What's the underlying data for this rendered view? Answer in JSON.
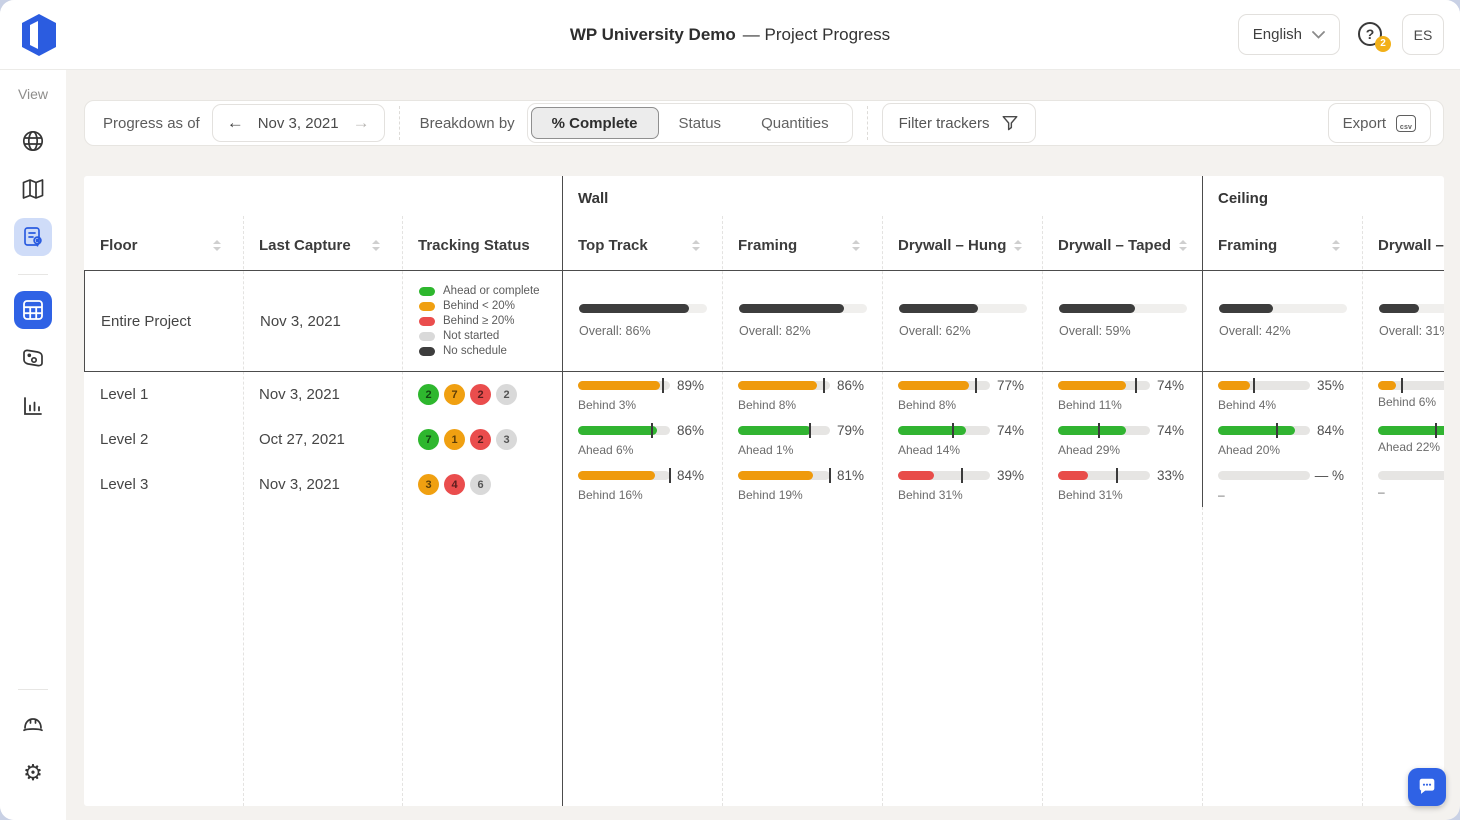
{
  "header": {
    "title_bold": "WP University Demo",
    "title_rest": "— Project Progress",
    "language": "English",
    "help_badge": "2",
    "avatar": "ES"
  },
  "sidebar": {
    "view_label": "View",
    "icons": [
      "globe-icon",
      "map-icon",
      "report-pin-icon",
      "grid-table-icon",
      "photo-map-icon",
      "bar-chart-icon",
      "hardhat-icon",
      "gear-icon"
    ]
  },
  "toolbar": {
    "progress_label": "Progress as of",
    "date": "Nov 3, 2021",
    "breakdown_label": "Breakdown by",
    "tabs": [
      {
        "label": "% Complete",
        "active": true
      },
      {
        "label": "Status",
        "active": false
      },
      {
        "label": "Quantities",
        "active": false
      }
    ],
    "filter_label": "Filter trackers",
    "export_label": "Export",
    "csv_label": "csv"
  },
  "colors": {
    "accent": "#2b5ce0",
    "ahead": "#31b431",
    "behind": "#ef9a0c",
    "severe": "#e84c49",
    "empty": "transparent",
    "overall": "#3d3d3d",
    "badges": {
      "green": "#2eb72e",
      "orange": "#f0a011",
      "red": "#ea4d4d",
      "gray": "#d9d9d9"
    }
  },
  "table": {
    "groups": [
      "Wall",
      "Ceiling"
    ],
    "columns": [
      {
        "label": "Floor",
        "sortable": true
      },
      {
        "label": "Last Capture",
        "sortable": true
      },
      {
        "label": "Tracking Status",
        "sortable": false
      },
      {
        "label": "Top Track",
        "sortable": true
      },
      {
        "label": "Framing",
        "sortable": true
      },
      {
        "label": "Drywall – Hung",
        "sortable": true
      },
      {
        "label": "Drywall – Taped",
        "sortable": true
      },
      {
        "label": "Framing",
        "sortable": true
      },
      {
        "label": "Drywall – Hung",
        "sortable": true
      }
    ],
    "summary_row": {
      "floor": "Entire Project",
      "last_capture": "Nov 3, 2021",
      "legend": [
        {
          "color": "#2eb72e",
          "label": "Ahead or complete"
        },
        {
          "color": "#f0a011",
          "label": "Behind < 20%"
        },
        {
          "color": "#ea4d4d",
          "label": "Behind ≥ 20%"
        },
        {
          "color": "#d9d9d9",
          "label": "Not started"
        },
        {
          "color": "#3d3d3d",
          "label": "No schedule"
        }
      ],
      "trackers": [
        {
          "pct": 86,
          "status": "overall",
          "note": "Overall: 86%"
        },
        {
          "pct": 82,
          "status": "overall",
          "note": "Overall: 82%"
        },
        {
          "pct": 62,
          "status": "overall",
          "note": "Overall: 62%"
        },
        {
          "pct": 59,
          "status": "overall",
          "note": "Overall: 59%"
        },
        {
          "pct": 42,
          "status": "overall",
          "note": "Overall: 42%"
        },
        {
          "pct": 31,
          "status": "overall",
          "note": "Overall: 31%"
        }
      ]
    },
    "rows": [
      {
        "floor": "Level 1",
        "last_capture": "Nov 3, 2021",
        "badges": [
          {
            "count": "2",
            "color": "green"
          },
          {
            "count": "7",
            "color": "orange"
          },
          {
            "count": "2",
            "color": "red"
          },
          {
            "count": "2",
            "color": "gray"
          }
        ],
        "trackers": [
          {
            "pct": 89,
            "value": "89%",
            "status": "behind",
            "note": "Behind 3%",
            "marker": 92
          },
          {
            "pct": 86,
            "value": "86%",
            "status": "behind",
            "note": "Behind 8%",
            "marker": 94
          },
          {
            "pct": 77,
            "value": "77%",
            "status": "behind",
            "note": "Behind 8%",
            "marker": 85
          },
          {
            "pct": 74,
            "value": "74%",
            "status": "behind",
            "note": "Behind 11%",
            "marker": 85
          },
          {
            "pct": 35,
            "value": "35%",
            "status": "behind",
            "note": "Behind 4%",
            "marker": 39
          },
          {
            "pct": 20,
            "value": "",
            "status": "behind",
            "note": "Behind 6%",
            "marker": 26
          }
        ]
      },
      {
        "floor": "Level 2",
        "last_capture": "Oct 27, 2021",
        "badges": [
          {
            "count": "7",
            "color": "green"
          },
          {
            "count": "1",
            "color": "orange"
          },
          {
            "count": "2",
            "color": "red"
          },
          {
            "count": "3",
            "color": "gray"
          }
        ],
        "trackers": [
          {
            "pct": 86,
            "value": "86%",
            "status": "ahead",
            "note": "Ahead 6%",
            "marker": 80
          },
          {
            "pct": 79,
            "value": "79%",
            "status": "ahead",
            "note": "Ahead 1%",
            "marker": 78
          },
          {
            "pct": 74,
            "value": "74%",
            "status": "ahead",
            "note": "Ahead 14%",
            "marker": 60
          },
          {
            "pct": 74,
            "value": "74%",
            "status": "ahead",
            "note": "Ahead 29%",
            "marker": 45
          },
          {
            "pct": 84,
            "value": "84%",
            "status": "ahead",
            "note": "Ahead 20%",
            "marker": 64
          },
          {
            "pct": 85,
            "value": "",
            "status": "ahead",
            "note": "Ahead 22%",
            "marker": 63
          }
        ]
      },
      {
        "floor": "Level 3",
        "last_capture": "Nov 3, 2021",
        "badges": [
          {
            "count": "3",
            "color": "orange"
          },
          {
            "count": "4",
            "color": "red"
          },
          {
            "count": "6",
            "color": "gray"
          }
        ],
        "trackers": [
          {
            "pct": 84,
            "value": "84%",
            "status": "behind",
            "note": "Behind 16%",
            "marker": 100
          },
          {
            "pct": 81,
            "value": "81%",
            "status": "behind",
            "note": "Behind 19%",
            "marker": 100
          },
          {
            "pct": 39,
            "value": "39%",
            "status": "severe",
            "note": "Behind 31%",
            "marker": 70
          },
          {
            "pct": 33,
            "value": "33%",
            "status": "severe",
            "note": "Behind 31%",
            "marker": 64
          },
          {
            "pct": 0,
            "value": "— %",
            "status": "empty",
            "note": "–",
            "marker": null
          },
          {
            "pct": 0,
            "value": "",
            "status": "empty",
            "note": "–",
            "marker": null
          }
        ]
      }
    ]
  }
}
